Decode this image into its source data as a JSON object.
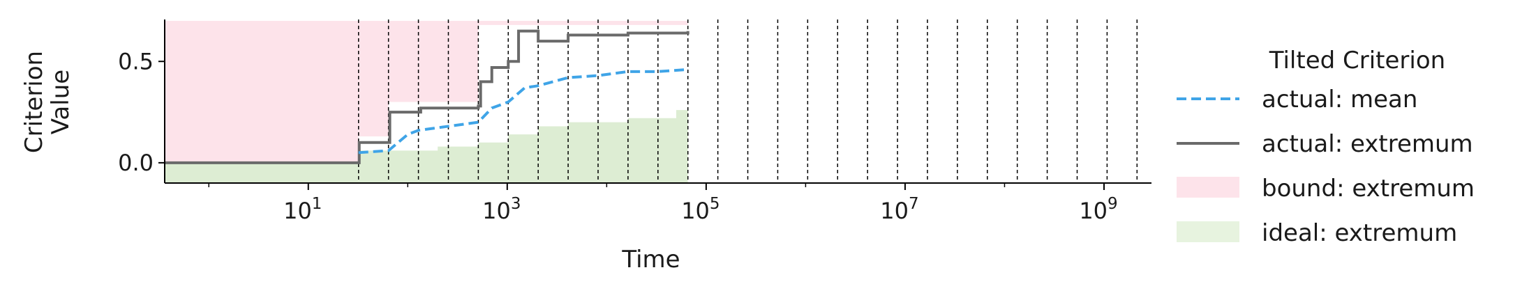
{
  "chart_data": {
    "type": "line",
    "xlabel": "Time",
    "ylabel_lines": [
      "Criterion",
      "Value"
    ],
    "x_scale": "log",
    "xlim": [
      0.36,
      3000000000
    ],
    "ylim": [
      -0.1,
      0.7
    ],
    "y_ticks": [
      0.0,
      0.5
    ],
    "y_tick_labels": [
      "0.0",
      "0.5"
    ],
    "x_ticks": [
      {
        "value": 10,
        "base": "10",
        "exp": "1"
      },
      {
        "value": 1000,
        "base": "10",
        "exp": "3"
      },
      {
        "value": 100000,
        "base": "10",
        "exp": "5"
      },
      {
        "value": 10000000,
        "base": "10",
        "exp": "7"
      },
      {
        "value": 1000000000,
        "base": "10",
        "exp": "9"
      }
    ],
    "vlines": [
      32,
      64,
      128,
      256,
      512,
      1024,
      2048,
      4096,
      8192,
      16384,
      32768,
      65536,
      131072,
      262144,
      524288,
      1048576,
      2097152,
      4194304,
      8388608,
      16777216,
      33554432,
      67108864,
      134217728,
      268435456,
      536870912,
      1073741824,
      2147483648
    ],
    "bound_extremum": {
      "upper": 0.7,
      "lower_steps": [
        [
          0.36,
          -0.1
        ],
        [
          32,
          0.13
        ],
        [
          64,
          0.3
        ],
        [
          512,
          0.68
        ],
        [
          65536,
          0.68
        ]
      ]
    },
    "ideal_extremum": {
      "upper_steps": [
        [
          0.36,
          0.0
        ],
        [
          32,
          0.06
        ],
        [
          200,
          0.08
        ],
        [
          512,
          0.1
        ],
        [
          1024,
          0.14
        ],
        [
          2048,
          0.18
        ],
        [
          4096,
          0.2
        ],
        [
          16384,
          0.22
        ],
        [
          50000,
          0.26
        ],
        [
          65536,
          0.26
        ]
      ],
      "lower": -0.1
    },
    "actual_extremum": [
      [
        0.36,
        0.0
      ],
      [
        32,
        0.0
      ],
      [
        32.5,
        0.1
      ],
      [
        64,
        0.1
      ],
      [
        66,
        0.25
      ],
      [
        128,
        0.25
      ],
      [
        135,
        0.27
      ],
      [
        256,
        0.27
      ],
      [
        512,
        0.28
      ],
      [
        540,
        0.4
      ],
      [
        700,
        0.47
      ],
      [
        1024,
        0.5
      ],
      [
        1300,
        0.65
      ],
      [
        2048,
        0.6
      ],
      [
        4096,
        0.63
      ],
      [
        8192,
        0.63
      ],
      [
        16384,
        0.64
      ],
      [
        32768,
        0.64
      ],
      [
        65536,
        0.65
      ]
    ],
    "actual_mean": [
      [
        32,
        0.05
      ],
      [
        64,
        0.06
      ],
      [
        100,
        0.14
      ],
      [
        128,
        0.16
      ],
      [
        256,
        0.18
      ],
      [
        512,
        0.2
      ],
      [
        700,
        0.27
      ],
      [
        1024,
        0.3
      ],
      [
        1500,
        0.37
      ],
      [
        2048,
        0.38
      ],
      [
        4096,
        0.42
      ],
      [
        8192,
        0.43
      ],
      [
        16384,
        0.45
      ],
      [
        32768,
        0.45
      ],
      [
        65536,
        0.46
      ]
    ],
    "legend": {
      "title": "Tilted Criterion",
      "entries": [
        {
          "label": "actual: mean",
          "style": "dashed-line",
          "color": "#3fa4e7"
        },
        {
          "label": "actual: extremum",
          "style": "solid-line",
          "color": "#6a6a6a"
        },
        {
          "label": "bound: extremum",
          "style": "patch",
          "color": "#fde3ea"
        },
        {
          "label": "ideal: extremum",
          "style": "patch",
          "color": "#e7f3df"
        }
      ]
    },
    "colors": {
      "bound": "#fde3ea",
      "ideal": "#ddedd3",
      "mean": "#3fa4e7",
      "extremum": "#6a6a6a",
      "axis": "#000000"
    }
  }
}
